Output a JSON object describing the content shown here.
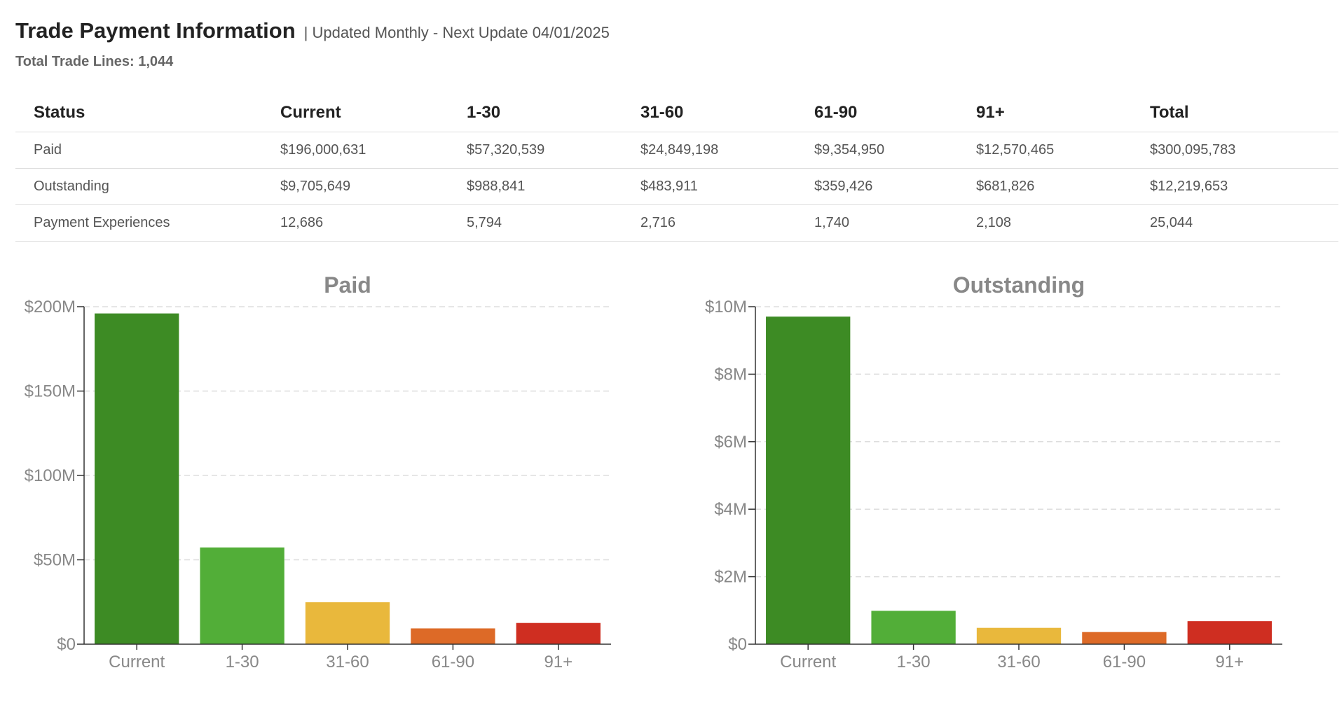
{
  "header": {
    "title": "Trade Payment Information",
    "subtitle": "| Updated Monthly - Next Update 04/01/2025",
    "total_trade_lines": "Total Trade Lines: 1,044"
  },
  "table": {
    "headers": [
      "Status",
      "Current",
      "1-30",
      "31-60",
      "61-90",
      "91+",
      "Total"
    ],
    "rows": [
      [
        "Paid",
        "$196,000,631",
        "$57,320,539",
        "$24,849,198",
        "$9,354,950",
        "$12,570,465",
        "$300,095,783"
      ],
      [
        "Outstanding",
        "$9,705,649",
        "$988,841",
        "$483,911",
        "$359,426",
        "$681,826",
        "$12,219,653"
      ],
      [
        "Payment Experiences",
        "12,686",
        "5,794",
        "2,716",
        "1,740",
        "2,108",
        "25,044"
      ]
    ]
  },
  "colors": {
    "current": "#3d8b24",
    "d1_30": "#52ae38",
    "d31_60": "#e9b83c",
    "d61_90": "#dd6a27",
    "d91_plus": "#cf2e21"
  },
  "chart_data": [
    {
      "type": "bar",
      "title": "Paid",
      "categories": [
        "Current",
        "1-30",
        "31-60",
        "61-90",
        "91+"
      ],
      "values": [
        196000631,
        57320539,
        24849198,
        9354950,
        12570465
      ],
      "ylim": [
        0,
        200000000
      ],
      "yticks": [
        0,
        50000000,
        100000000,
        150000000,
        200000000
      ],
      "ytick_labels": [
        "$0",
        "$50M",
        "$100M",
        "$150M",
        "$200M"
      ],
      "grid": true,
      "legend": "none"
    },
    {
      "type": "bar",
      "title": "Outstanding",
      "categories": [
        "Current",
        "1-30",
        "31-60",
        "61-90",
        "91+"
      ],
      "values": [
        9705649,
        988841,
        483911,
        359426,
        681826
      ],
      "ylim": [
        0,
        10000000
      ],
      "yticks": [
        0,
        2000000,
        4000000,
        6000000,
        8000000,
        10000000
      ],
      "ytick_labels": [
        "$0",
        "$2M",
        "$4M",
        "$6M",
        "$8M",
        "$10M"
      ],
      "grid": true,
      "legend": "none"
    }
  ]
}
